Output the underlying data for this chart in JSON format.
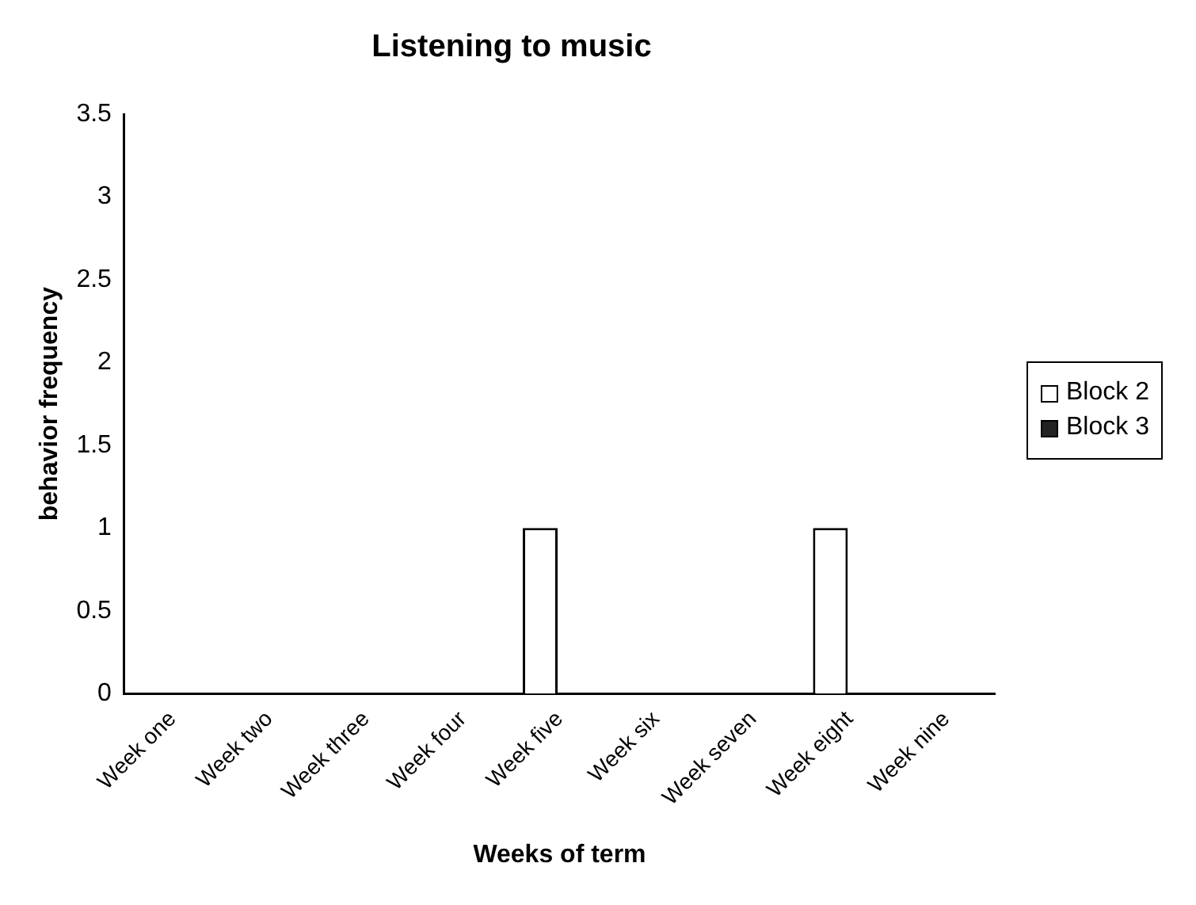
{
  "chart_data": {
    "type": "bar",
    "title": "Listening to music",
    "xlabel": "Weeks of term",
    "ylabel": "behavior frequency",
    "categories": [
      "Week one",
      "Week two",
      "Week three",
      "Week four",
      "Week five",
      "Week six",
      "Week seven",
      "Week eight",
      "Week nine"
    ],
    "series": [
      {
        "name": "Block 2",
        "color": "#ffffff",
        "values": [
          0,
          0,
          0,
          0,
          1,
          0,
          0,
          1,
          0
        ]
      },
      {
        "name": "Block 3",
        "color": "#222222",
        "values": [
          0,
          0,
          0,
          0,
          0,
          0,
          0,
          0,
          0
        ]
      }
    ],
    "ylim": [
      0,
      3.5
    ],
    "yticks": [
      0,
      0.5,
      1,
      1.5,
      2,
      2.5,
      3,
      3.5
    ],
    "grid": false,
    "legend": "right"
  }
}
